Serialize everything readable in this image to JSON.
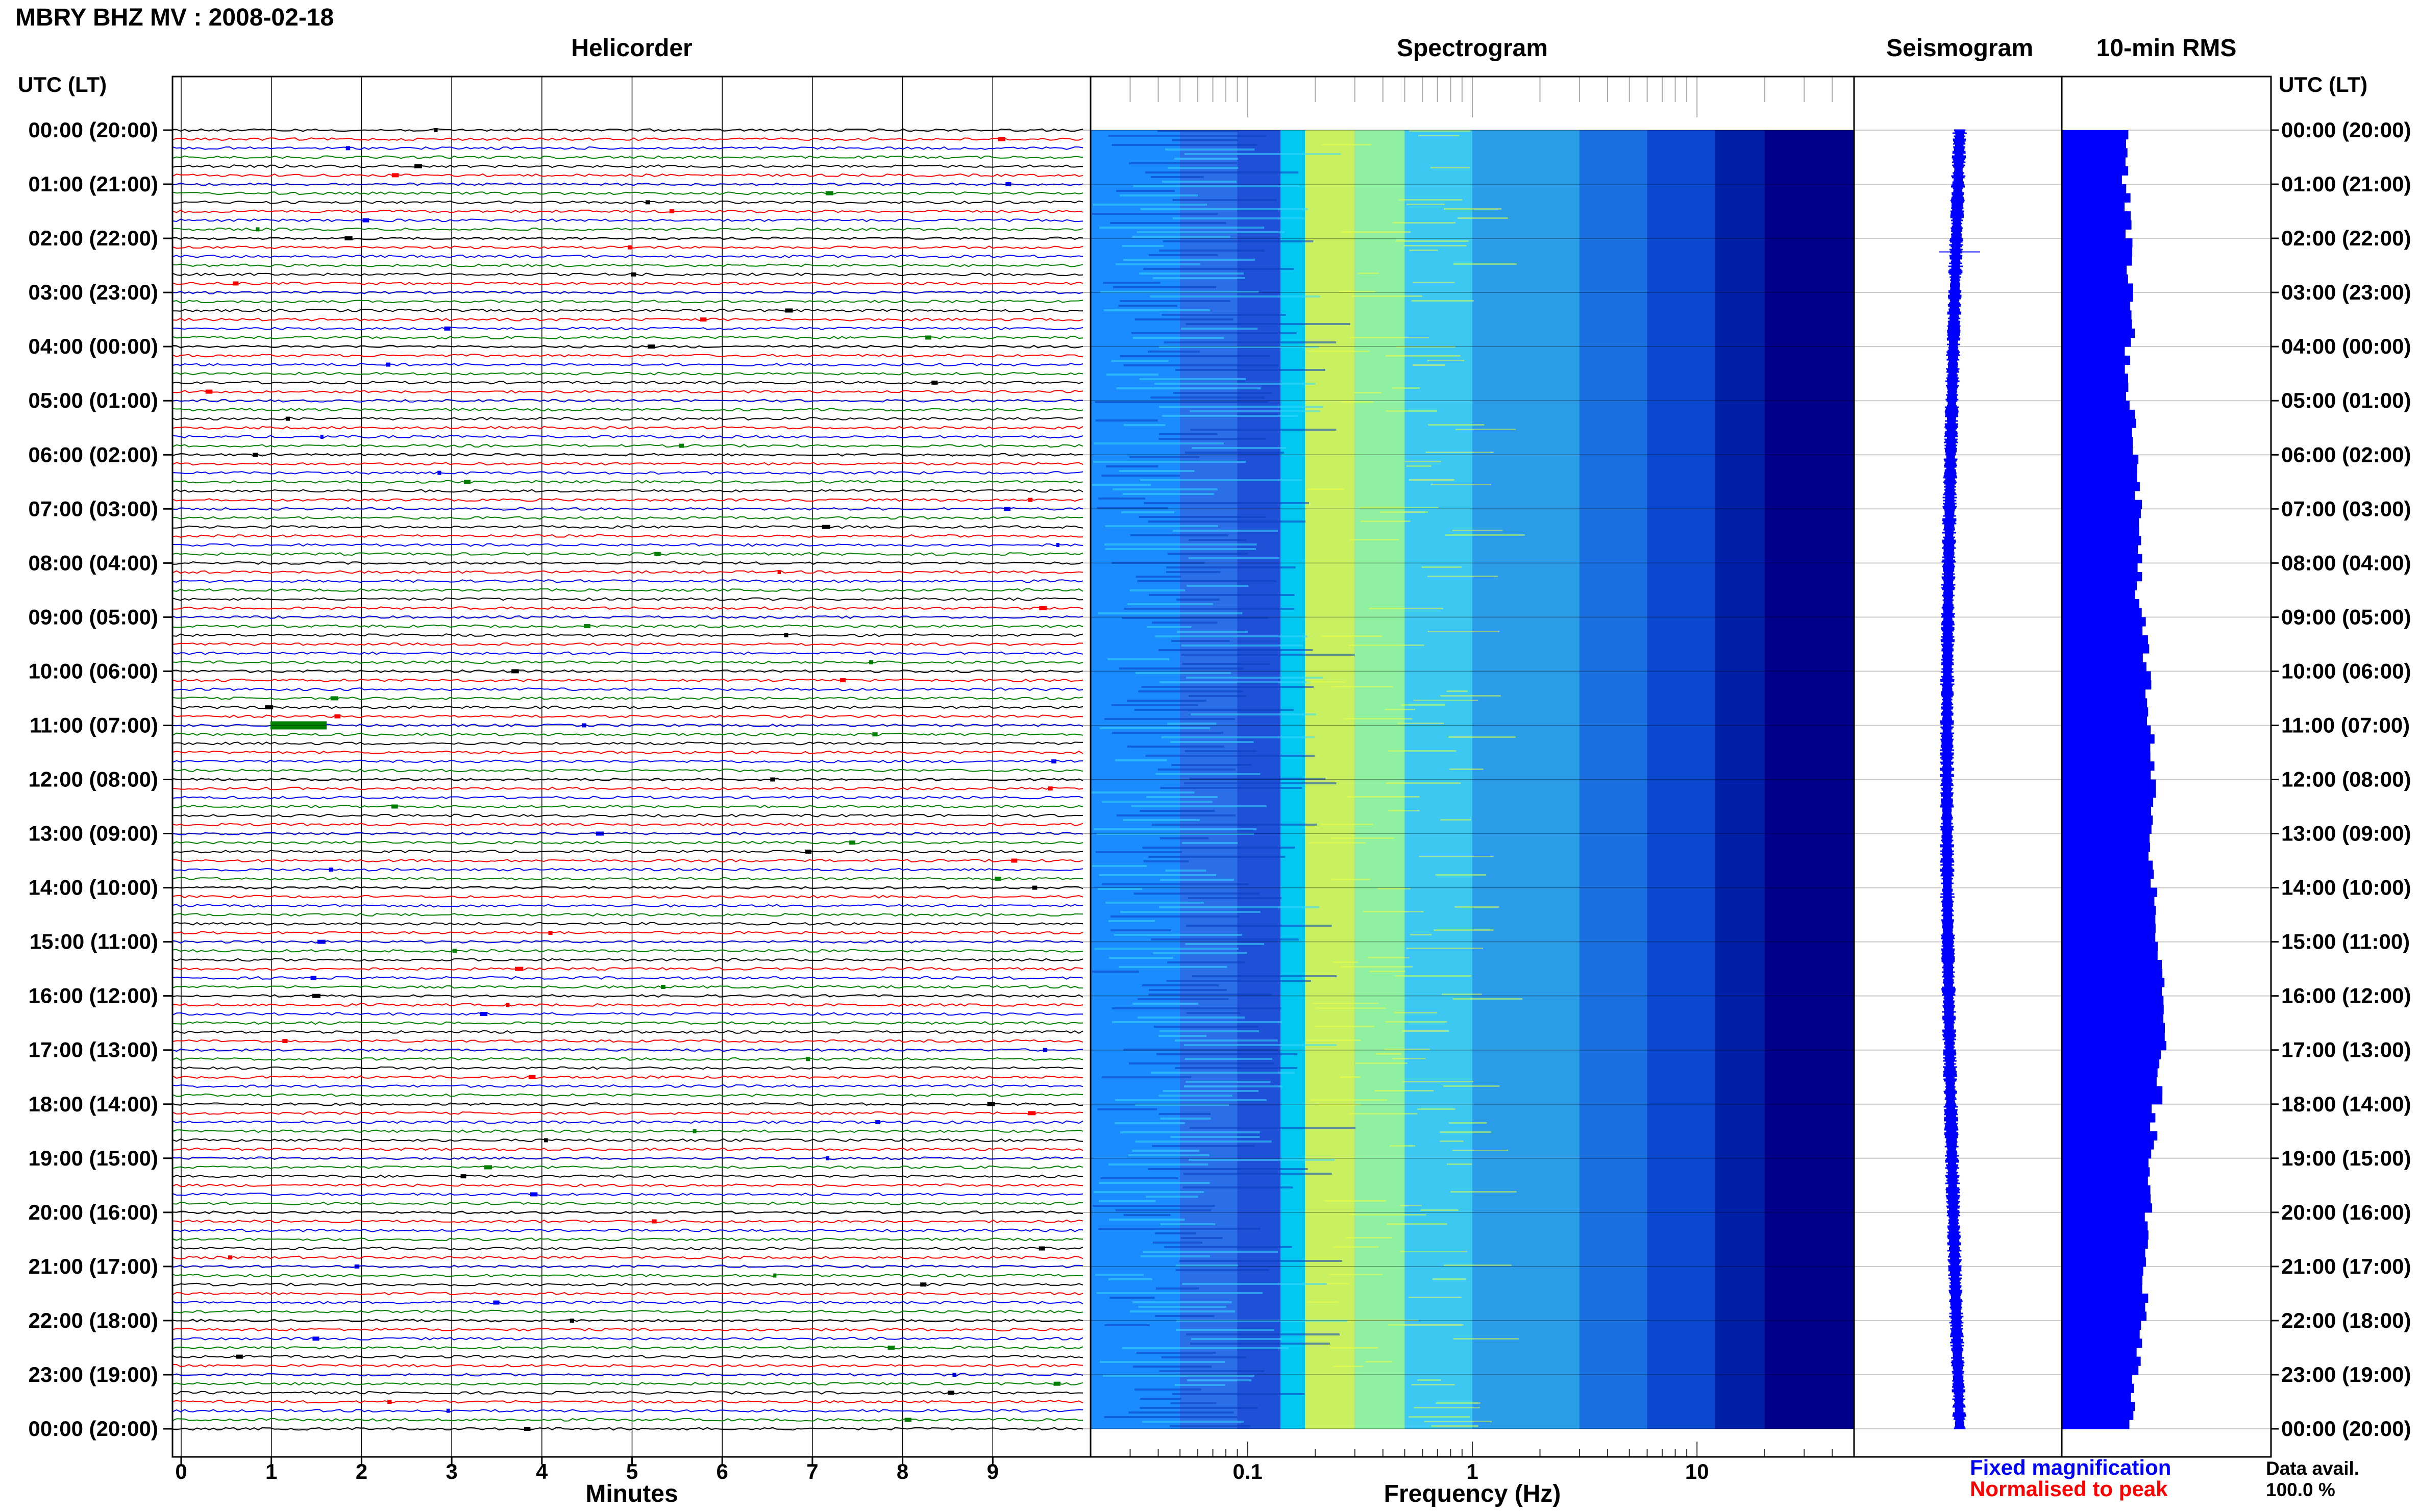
{
  "header": {
    "title": "MBRY BHZ MV : 2008-02-18"
  },
  "panels": {
    "helicorder": "Helicorder",
    "spectrogram": "Spectrogram",
    "seismogram": "Seismogram",
    "rms": "10-min RMS"
  },
  "axis": {
    "utc_label_left": "UTC (LT)",
    "utc_label_right": "UTC (LT)",
    "minutes_label": "Minutes",
    "frequency_label": "Frequency (Hz)"
  },
  "time_labels": [
    "00:00 (20:00)",
    "01:00 (21:00)",
    "02:00 (22:00)",
    "03:00 (23:00)",
    "04:00 (00:00)",
    "05:00 (01:00)",
    "06:00 (02:00)",
    "07:00 (03:00)",
    "08:00 (04:00)",
    "09:00 (05:00)",
    "10:00 (06:00)",
    "11:00 (07:00)",
    "12:00 (08:00)",
    "13:00 (09:00)",
    "14:00 (10:00)",
    "15:00 (11:00)",
    "16:00 (12:00)",
    "17:00 (13:00)",
    "18:00 (14:00)",
    "19:00 (15:00)",
    "20:00 (16:00)",
    "21:00 (17:00)",
    "22:00 (18:00)",
    "23:00 (19:00)",
    "00:00 (20:00)"
  ],
  "minute_ticks": [
    "0",
    "1",
    "2",
    "3",
    "4",
    "5",
    "6",
    "7",
    "8",
    "9"
  ],
  "frequency_ticks": [
    "0.1",
    "1",
    "10"
  ],
  "legend": {
    "fixed": "Fixed magnification",
    "normalised": "Normalised to peak",
    "fixed_color": "#0000ff",
    "normalised_color": "#ff0000"
  },
  "availability": {
    "label": "Data avail.",
    "value": "100.0 %"
  },
  "chart_data": {
    "type": "heatmap",
    "title": "MBRY BHZ MV : 2008-02-18",
    "helicorder": {
      "xlabel": "Minutes",
      "xlim": [
        0,
        10
      ],
      "rows_per_hour": 6,
      "trace_colors": [
        "#000000",
        "#ff0000",
        "#0000ff",
        "#008000"
      ]
    },
    "spectrogram": {
      "xlabel": "Frequency (Hz)",
      "xscale": "log",
      "xlim": [
        0.02,
        50
      ],
      "note_colors": [
        "#00008b",
        "#0000ff",
        "#00c8ff",
        "#ffff00"
      ]
    },
    "rms_10min_relative": [
      0.5,
      0.52,
      0.53,
      0.55,
      0.52,
      0.56,
      0.6,
      0.62,
      0.6,
      0.66,
      0.68,
      0.7,
      0.72,
      0.7,
      0.75,
      0.78,
      0.8,
      0.76,
      0.72,
      0.7,
      0.68,
      0.65,
      0.6,
      0.55
    ]
  }
}
